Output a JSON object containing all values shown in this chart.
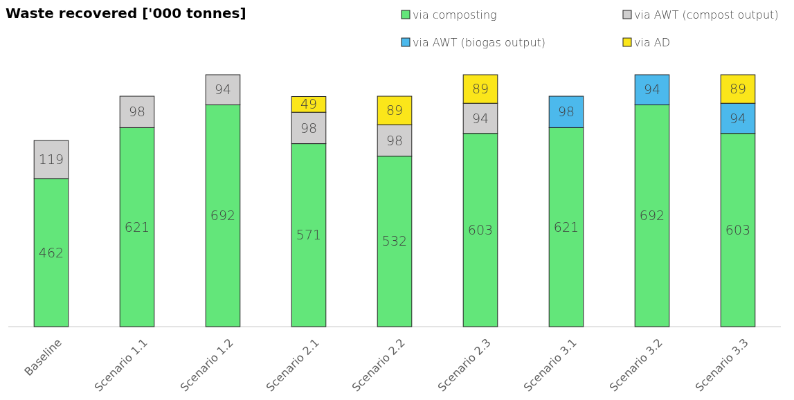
{
  "chart_data": {
    "type": "bar",
    "title": "Waste recovered ['000 tonnes]",
    "stacked": true,
    "data_labels": true,
    "legend": "top right",
    "categories": [
      "Baseline",
      "Scenario 1.1",
      "Scenario 1.2",
      "Scenario 2.1",
      "Scenario 2.2",
      "Scenario 2.3",
      "Scenario 3.1",
      "Scenario 3.2",
      "Scenario 3.3"
    ],
    "series": [
      {
        "name": "via composting",
        "color": "#63e67a",
        "values": [
          462,
          621,
          692,
          571,
          532,
          603,
          621,
          692,
          603
        ]
      },
      {
        "name": "via AWT (compost output)",
        "color": "#d0cfcf",
        "values": [
          119,
          98,
          94,
          98,
          98,
          94,
          null,
          null,
          null
        ]
      },
      {
        "name": "via AWT (biogas output)",
        "color": "#4cb9ec",
        "values": [
          null,
          null,
          null,
          null,
          null,
          null,
          98,
          94,
          94
        ]
      },
      {
        "name": "via AD",
        "color": "#fbe61a",
        "values": [
          null,
          null,
          null,
          49,
          89,
          89,
          null,
          null,
          89
        ]
      }
    ]
  }
}
